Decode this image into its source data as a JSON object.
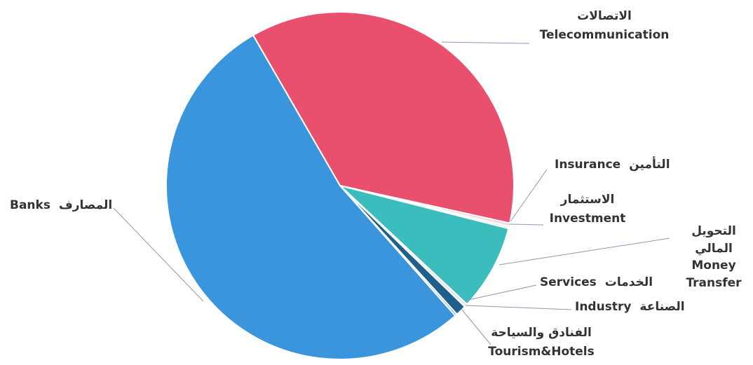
{
  "chart_data": {
    "type": "pie",
    "categories": [
      "Telecommunication",
      "Insurance",
      "Investment",
      "Money Transfer",
      "Services",
      "Industry",
      "Tourism&Hotels",
      "Banks"
    ],
    "categories_ar": [
      "الاتصالات",
      "التأمين",
      "الاستثمار",
      "التحويل المالي",
      "الخدمات",
      "الصناعة",
      "الفنادق والسياحة",
      "المصارف"
    ],
    "values": [
      36.8,
      0.3,
      0.2,
      8,
      0.3,
      1,
      0.2,
      53.2
    ],
    "colors": [
      "#e8506e",
      "#f2d6dc",
      "#d9eeee",
      "#3bbdbd",
      "#e4e4e4",
      "#1f5f8b",
      "#7fa8c8",
      "#3a95dc"
    ]
  }
}
